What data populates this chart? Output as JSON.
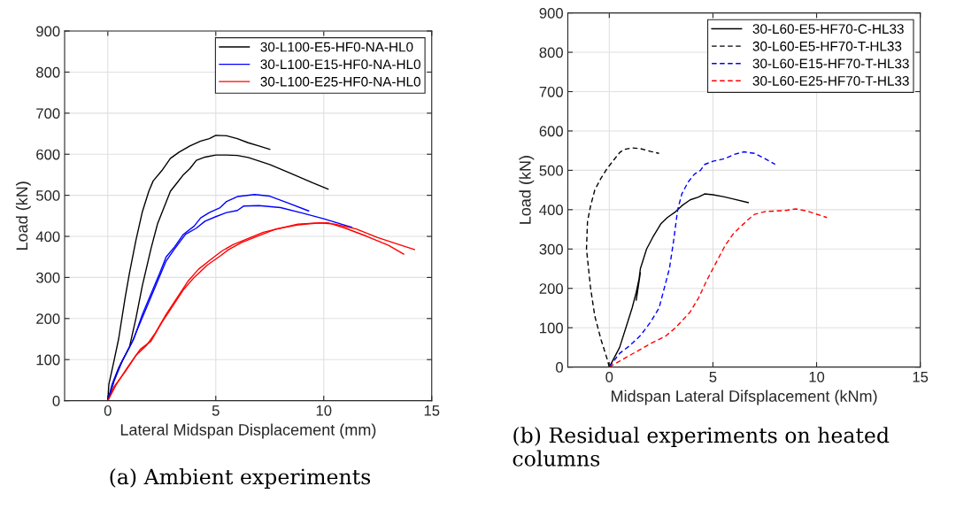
{
  "chart_data": [
    {
      "type": "line",
      "xlabel": "Lateral Midspan Displacement (mm)",
      "ylabel": "Load (kN)",
      "xlim": [
        -2,
        15
      ],
      "xticks": [
        0,
        5,
        10,
        15
      ],
      "ylim": [
        0,
        900
      ],
      "yticks": [
        0,
        100,
        200,
        300,
        400,
        500,
        600,
        700,
        800,
        900
      ],
      "grid": true,
      "legend": "top right",
      "annotations": [
        "(a) Ambient experiments"
      ],
      "series": [
        {
          "name": "30-L100-E5-HF0-NA-HL0",
          "color": "#000000",
          "line_style": "solid",
          "x": [
            0,
            0.05,
            0.3,
            0.5,
            0.8,
            1.0,
            1.3,
            1.6,
            1.9,
            2.1,
            2.5,
            2.9,
            3.3,
            3.8,
            4.3,
            4.7,
            5.0,
            5.5,
            6.0,
            6.5,
            7.0,
            7.5
          ],
          "values": [
            0,
            40,
            100,
            150,
            250,
            310,
            390,
            460,
            510,
            535,
            560,
            590,
            605,
            620,
            632,
            638,
            646,
            645,
            638,
            628,
            620,
            612
          ]
        },
        {
          "name": "30-L100-E15-HF0-NA-HL0",
          "color": "#0000ff",
          "line_style": "solid",
          "x": [
            0,
            0.2,
            0.5,
            0.9,
            1.2,
            1.6,
            2.0,
            2.4,
            2.7,
            3.1,
            3.5,
            4.0,
            4.3,
            4.7,
            5.2,
            5.5,
            6.0,
            6.8,
            7.5,
            8.3,
            9.3
          ],
          "values": [
            0,
            40,
            80,
            120,
            150,
            210,
            260,
            310,
            350,
            375,
            405,
            425,
            445,
            458,
            470,
            485,
            497,
            502,
            498,
            482,
            462
          ]
        },
        {
          "name": "30-L100-E25-HF0-NA-HL0",
          "color": "#ff0000",
          "line_style": "solid",
          "x": [
            0,
            0.3,
            0.8,
            1.3,
            1.8,
            2.2,
            2.7,
            3.2,
            3.7,
            4.2,
            4.8,
            5.3,
            5.8,
            6.5,
            7.2,
            8.0,
            8.8,
            9.5,
            10.2,
            11.0,
            12.0,
            13.0,
            13.7
          ],
          "values": [
            0,
            35,
            70,
            110,
            135,
            165,
            210,
            250,
            290,
            320,
            345,
            365,
            380,
            395,
            410,
            420,
            430,
            432,
            433,
            420,
            400,
            378,
            357
          ]
        },
        {
          "color": "#000000",
          "line_style": "solid",
          "x": [
            0,
            0.3,
            0.6,
            1.0,
            1.3,
            1.6,
            2.0,
            2.3,
            2.6,
            2.9,
            3.2,
            3.5,
            3.8,
            4.1,
            4.5,
            5.0,
            5.5,
            6.0,
            6.5,
            7.5,
            8.5,
            9.5,
            10.2
          ],
          "values": [
            0,
            50,
            90,
            130,
            200,
            280,
            370,
            430,
            470,
            510,
            530,
            550,
            565,
            585,
            593,
            598,
            598,
            597,
            592,
            575,
            553,
            530,
            515
          ]
        },
        {
          "color": "#0000ff",
          "line_style": "solid",
          "x": [
            0,
            0.3,
            0.7,
            1.1,
            1.5,
            1.9,
            2.3,
            2.7,
            3.1,
            3.6,
            4.1,
            4.5,
            5.0,
            5.5,
            6.0,
            6.3,
            7.0,
            8.0,
            9.0,
            10.0,
            11.3
          ],
          "values": [
            0,
            50,
            100,
            140,
            190,
            240,
            290,
            340,
            370,
            405,
            420,
            437,
            448,
            458,
            463,
            474,
            475,
            470,
            457,
            443,
            422
          ]
        },
        {
          "color": "#ff0000",
          "line_style": "solid",
          "x": [
            0,
            0.4,
            0.9,
            1.5,
            2.0,
            2.5,
            3.0,
            3.5,
            4.0,
            4.6,
            5.2,
            5.6,
            6.2,
            7.0,
            7.8,
            8.8,
            9.8,
            10.5,
            11.5,
            12.5,
            13.5,
            14.2
          ],
          "values": [
            0,
            40,
            80,
            125,
            145,
            190,
            230,
            270,
            300,
            330,
            352,
            368,
            385,
            402,
            418,
            428,
            433,
            430,
            418,
            397,
            380,
            368
          ]
        }
      ]
    },
    {
      "type": "line",
      "xlabel": "Midspan Lateral Difsplacement (kNm)",
      "ylabel": "Load (kN)",
      "xlim": [
        -2,
        15
      ],
      "xticks": [
        0,
        5,
        10,
        15
      ],
      "ylim": [
        0,
        900
      ],
      "yticks": [
        0,
        100,
        200,
        300,
        400,
        500,
        600,
        700,
        800,
        900
      ],
      "grid": true,
      "legend": "top right",
      "annotations": [
        "(b) Residual experiments on heated columns"
      ],
      "series": [
        {
          "name": "30-L60-E5-HF70-C-HL33",
          "color": "#000000",
          "line_style": "solid",
          "x": [
            0,
            0.3,
            0.5,
            0.8,
            1.1,
            1.3,
            1.5,
            1.3,
            1.5,
            1.8,
            2.1,
            2.5,
            2.8,
            3.2,
            3.5,
            3.9,
            4.3,
            4.6,
            5.0,
            5.5,
            6.0,
            6.7
          ],
          "values": [
            0,
            30,
            50,
            100,
            150,
            190,
            240,
            170,
            250,
            300,
            330,
            365,
            380,
            395,
            410,
            425,
            432,
            440,
            438,
            433,
            427,
            418
          ]
        },
        {
          "name": "30-L60-E5-HF70-T-HL33",
          "color": "#000000",
          "line_style": "dashed",
          "x": [
            0,
            -0.1,
            -0.4,
            -0.7,
            -0.9,
            -1.1,
            -1.05,
            -0.9,
            -0.7,
            -0.4,
            -0.1,
            0.2,
            0.5,
            0.7,
            1.1,
            1.5,
            2.0,
            2.4
          ],
          "values": [
            0,
            20,
            70,
            130,
            200,
            300,
            370,
            410,
            450,
            480,
            505,
            525,
            545,
            553,
            557,
            555,
            548,
            543
          ]
        },
        {
          "name": "30-L60-E15-HF70-T-HL33",
          "color": "#0000ff",
          "line_style": "dashed",
          "x": [
            0,
            0.5,
            1.0,
            1.5,
            2.0,
            2.4,
            2.6,
            2.9,
            3.1,
            3.3,
            3.5,
            3.8,
            4.1,
            4.4,
            4.6,
            5.0,
            5.6,
            6.0,
            6.5,
            7.0,
            7.5,
            8.0
          ],
          "values": [
            0,
            35,
            55,
            80,
            115,
            150,
            190,
            250,
            320,
            400,
            440,
            470,
            490,
            500,
            515,
            523,
            530,
            540,
            547,
            543,
            530,
            515
          ]
        },
        {
          "name": "30-L60-E25-HF70-T-HL33",
          "color": "#ff0000",
          "line_style": "dashed",
          "x": [
            0,
            1.0,
            2.0,
            2.7,
            3.2,
            3.9,
            4.3,
            4.7,
            5.2,
            5.6,
            6.0,
            6.4,
            6.7,
            7.0,
            7.5,
            8.5,
            9.0,
            9.5,
            10.5
          ],
          "values": [
            0,
            30,
            60,
            78,
            100,
            140,
            175,
            220,
            270,
            310,
            340,
            360,
            375,
            388,
            395,
            398,
            402,
            397,
            380
          ]
        }
      ]
    }
  ]
}
